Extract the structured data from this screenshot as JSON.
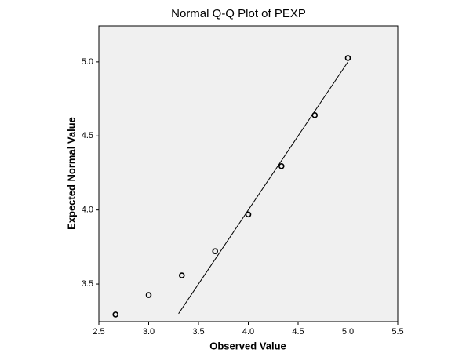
{
  "chart_data": {
    "type": "scatter",
    "title": "Normal Q-Q Plot of PEXP",
    "x_label": "Observed Value",
    "y_label": "Expected Normal Value",
    "x": [
      2.667,
      3.0,
      3.333,
      3.667,
      4.0,
      4.333,
      4.667,
      5.0
    ],
    "values": [
      3.294,
      3.426,
      3.558,
      3.722,
      3.97,
      4.296,
      4.64,
      5.026
    ],
    "reference_line": {
      "x": [
        3.3,
        5.0
      ],
      "y": [
        3.3,
        5.0
      ]
    },
    "xlim": [
      2.5,
      5.5
    ],
    "xticks": [
      {
        "value": 2.5,
        "label": "2.5"
      },
      {
        "value": 3,
        "label": "3.0"
      },
      {
        "value": 3.5,
        "label": "3.5"
      },
      {
        "value": 4,
        "label": "4.0"
      },
      {
        "value": 4.5,
        "label": "4.5"
      },
      {
        "value": 5,
        "label": "5.0"
      },
      {
        "value": 5.5,
        "label": "5.5"
      }
    ],
    "ylim": [
      3.246,
      5.243
    ],
    "yticks": [
      {
        "value": 3.5,
        "label": "3.5"
      },
      {
        "value": 4,
        "label": "4.0"
      },
      {
        "value": 4.5,
        "label": "4.5"
      },
      {
        "value": 5,
        "label": "5.0"
      }
    ],
    "color": "#000000",
    "background": "#f0f0f0"
  }
}
